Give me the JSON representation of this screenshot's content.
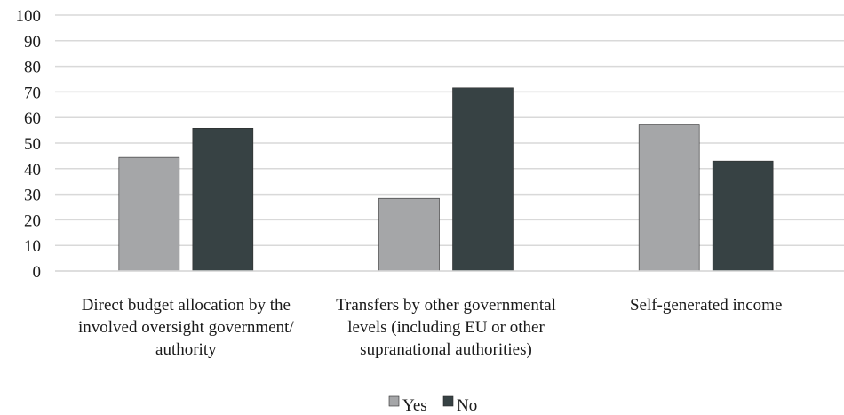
{
  "chart_data": {
    "type": "bar",
    "title": "",
    "xlabel": "",
    "ylabel": "",
    "ylim": [
      0,
      100
    ],
    "yticks": [
      0,
      10,
      20,
      30,
      40,
      50,
      60,
      70,
      80,
      90,
      100
    ],
    "grid": true,
    "legend_position": "bottom-center",
    "categories": [
      [
        "Direct budget allocation by the",
        "involved oversight government/",
        "authority"
      ],
      [
        "Transfers by other governmental",
        "levels (including EU or other",
        "supranational authorities)"
      ],
      [
        "Self-generated income"
      ]
    ],
    "series": [
      {
        "name": "Yes",
        "color": "#a5a6a8",
        "values": [
          44.4,
          28.4,
          57.1
        ]
      },
      {
        "name": "No",
        "color": "#374244",
        "values": [
          55.8,
          71.6,
          43.0
        ]
      }
    ]
  }
}
